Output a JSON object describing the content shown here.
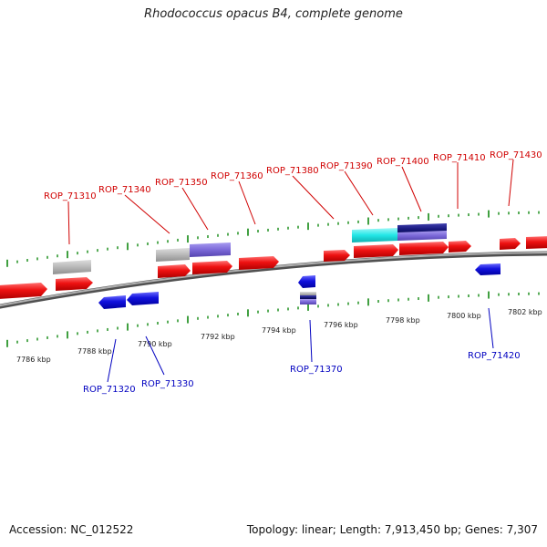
{
  "title": "Rhodococcus opacus B4, complete genome",
  "footer": {
    "accession": "Accession: NC_012522",
    "summary": "Topology: linear; Length: 7,913,450 bp; Genes: 7,307"
  },
  "colors": {
    "forward_gene": "#ee1111",
    "reverse_gene": "#1111dd",
    "gray_feature": "#b8b8b8",
    "purple_feature": "#7b68d8",
    "cyan_feature": "#22e6e6",
    "navy_feature": "#1a1a80",
    "axis": "#808080",
    "tick": "#118811",
    "label_top": "#d00000",
    "label_bottom": "#0000c0"
  },
  "ruler": {
    "labels": [
      "7786 kbp",
      "7788 kbp",
      "7790 kbp",
      "7792 kbp",
      "7794 kbp",
      "7796 kbp",
      "7798 kbp",
      "7800 kbp",
      "7802 kbp"
    ]
  },
  "gene_labels": {
    "top": [
      "ROP_71310",
      "ROP_71340",
      "ROP_71350",
      "ROP_71360",
      "ROP_71380",
      "ROP_71390",
      "ROP_71400",
      "ROP_71410",
      "ROP_71430"
    ],
    "bottom": [
      "ROP_71320",
      "ROP_71330",
      "ROP_71370",
      "ROP_71420"
    ]
  }
}
